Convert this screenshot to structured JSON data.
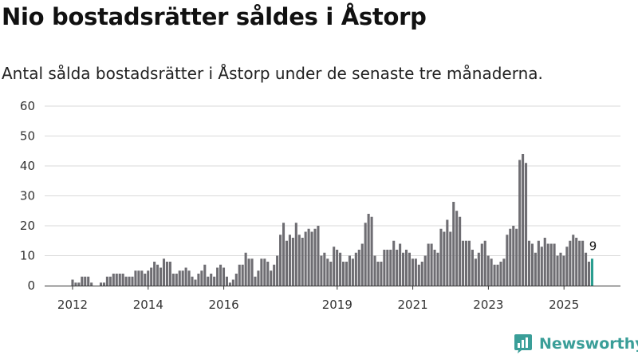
{
  "title": "Nio bostadsrätter såldes i Åstorp",
  "subtitle": "Antal sålda bostadsrätter i Åstorp under de senaste tre månaderna.",
  "brand": "Newsworthy",
  "colors": {
    "bar": "#6e6d72",
    "highlight": "#2a9d8f",
    "grid": "#d9d9d9",
    "brand": "#3a9e98"
  },
  "chart_data": {
    "type": "bar",
    "title": "Nio bostadsrätter såldes i Åstorp",
    "xlabel": "",
    "ylabel": "",
    "ylim": [
      0,
      60
    ],
    "y_ticks": [
      0,
      10,
      20,
      30,
      40,
      50,
      60
    ],
    "x_start": 2011.0,
    "x_step": 0.0833,
    "x_ticks": [
      "2012",
      "2014",
      "2016",
      "2019",
      "2021",
      "2023",
      "2025"
    ],
    "x_tick_positions": [
      2012.0,
      2014.0,
      2016.0,
      2019.0,
      2021.0,
      2023.0,
      2025.0
    ],
    "values": [
      0,
      0,
      0,
      0,
      0,
      0,
      0,
      0,
      0,
      0,
      0,
      0,
      2,
      1,
      1,
      3,
      3,
      3,
      1,
      0,
      0,
      1,
      1,
      3,
      3,
      4,
      4,
      4,
      4,
      3,
      3,
      3,
      5,
      5,
      5,
      4,
      5,
      6,
      8,
      7,
      6,
      9,
      8,
      8,
      4,
      4,
      5,
      5,
      6,
      5,
      3,
      2,
      4,
      5,
      7,
      3,
      4,
      3,
      6,
      7,
      6,
      3,
      1,
      2,
      4,
      7,
      7,
      11,
      9,
      9,
      3,
      5,
      9,
      9,
      8,
      5,
      7,
      10,
      17,
      21,
      15,
      17,
      16,
      21,
      17,
      16,
      18,
      19,
      18,
      19,
      20,
      10,
      11,
      9,
      8,
      13,
      12,
      11,
      8,
      8,
      10,
      9,
      11,
      12,
      14,
      21,
      24,
      23,
      10,
      8,
      8,
      12,
      12,
      12,
      15,
      12,
      14,
      11,
      12,
      11,
      9,
      9,
      7,
      8,
      10,
      14,
      14,
      12,
      11,
      19,
      18,
      22,
      18,
      28,
      25,
      23,
      15,
      15,
      15,
      12,
      9,
      11,
      14,
      15,
      10,
      9,
      7,
      7,
      8,
      9,
      17,
      19,
      20,
      19,
      42,
      44,
      41,
      15,
      14,
      11,
      15,
      13,
      16,
      14,
      14,
      14,
      10,
      11,
      10,
      13,
      15,
      17,
      16,
      15,
      15,
      11,
      8,
      9
    ],
    "annotations": [
      {
        "label": "9",
        "index": 177
      }
    ],
    "highlight_last": true
  }
}
